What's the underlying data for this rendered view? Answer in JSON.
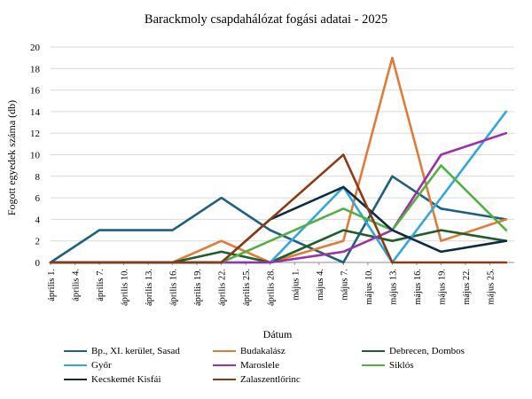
{
  "chart_data": {
    "type": "line",
    "title": "Barackmoly csapdahálózat fogási adatai - 2025",
    "xlabel": "Dátum",
    "ylabel": "Fogott egyedek száma (db)",
    "ylim": [
      0,
      20
    ],
    "yticks": [
      "0",
      "2",
      "4",
      "6",
      "8",
      "10",
      "12",
      "14",
      "16",
      "18",
      "20"
    ],
    "grid": true,
    "legend_position": "bottom",
    "categories": [
      "április 1.",
      "április 4.",
      "április 7.",
      "április 10.",
      "április 13.",
      "április 16.",
      "április 19.",
      "április 22.",
      "április 25.",
      "április 28.",
      "május 1.",
      "május 4.",
      "május 7.",
      "május 10.",
      "május 13.",
      "május 16.",
      "május 19.",
      "május 22.",
      "május 25."
    ],
    "series": [
      {
        "name": "Bp., XI. kerület, Sasad",
        "color": "#1f5f80",
        "points": [
          [
            "április 1.",
            0
          ],
          [
            "április 7.",
            3
          ],
          [
            "április 16.",
            3
          ],
          [
            "április 22.",
            6
          ],
          [
            "április 28.",
            3
          ],
          [
            "május 7.",
            0
          ],
          [
            "május 13.",
            8
          ],
          [
            "május 19.",
            5
          ],
          [
            "május 27.",
            4
          ]
        ]
      },
      {
        "name": "Budakalász",
        "color": "#e07b39",
        "points": [
          [
            "április 1.",
            0
          ],
          [
            "április 16.",
            0
          ],
          [
            "április 22.",
            2
          ],
          [
            "április 28.",
            0
          ],
          [
            "május 7.",
            2
          ],
          [
            "május 13.",
            19
          ],
          [
            "május 19.",
            2
          ],
          [
            "május 27.",
            4
          ]
        ]
      },
      {
        "name": "Debrecen, Dombos",
        "color": "#1e5e2b",
        "points": [
          [
            "április 1.",
            0
          ],
          [
            "április 16.",
            0
          ],
          [
            "április 22.",
            1
          ],
          [
            "április 28.",
            0
          ],
          [
            "május 7.",
            3
          ],
          [
            "május 13.",
            2
          ],
          [
            "május 19.",
            3
          ],
          [
            "május 27.",
            2
          ]
        ]
      },
      {
        "name": "Győr",
        "color": "#33a6dd",
        "points": [
          [
            "április 1.",
            0
          ],
          [
            "április 28.",
            0
          ],
          [
            "május 7.",
            7
          ],
          [
            "május 13.",
            0
          ],
          [
            "május 19.",
            6
          ],
          [
            "május 27.",
            14
          ]
        ]
      },
      {
        "name": "Maroslele",
        "color": "#9b30a8",
        "points": [
          [
            "április 1.",
            0
          ],
          [
            "április 28.",
            0
          ],
          [
            "május 7.",
            1
          ],
          [
            "május 13.",
            3
          ],
          [
            "május 19.",
            10
          ],
          [
            "május 27.",
            12
          ]
        ]
      },
      {
        "name": "Siklós",
        "color": "#52b043",
        "points": [
          [
            "április 1.",
            0
          ],
          [
            "április 22.",
            0
          ],
          [
            "április 28.",
            2
          ],
          [
            "május 7.",
            5
          ],
          [
            "május 13.",
            3
          ],
          [
            "május 19.",
            9
          ],
          [
            "május 27.",
            3
          ]
        ]
      },
      {
        "name": "Kecskemét Kisfái",
        "color": "#0d2b45",
        "points": [
          [
            "április 1.",
            0
          ],
          [
            "április 22.",
            0
          ],
          [
            "április 28.",
            4
          ],
          [
            "május 7.",
            7
          ],
          [
            "május 13.",
            3
          ],
          [
            "május 19.",
            1
          ],
          [
            "május 27.",
            2
          ]
        ]
      },
      {
        "name": "Zalaszentlőrinc",
        "color": "#8b3a14",
        "points": [
          [
            "április 1.",
            0
          ],
          [
            "április 22.",
            0
          ],
          [
            "május 7.",
            10
          ],
          [
            "május 13.",
            0
          ],
          [
            "május 27.",
            0
          ]
        ]
      }
    ]
  }
}
